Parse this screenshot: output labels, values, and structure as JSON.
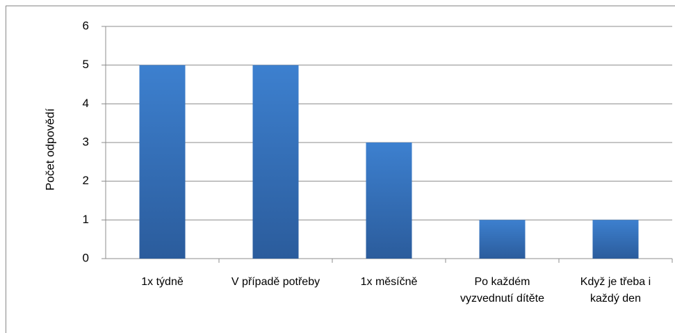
{
  "chart_data": {
    "type": "bar",
    "y_label": "Počet odpovědí",
    "categories": [
      "1x týdně",
      "V případě potřeby",
      "1x měsíčně",
      "Po každém vyzvednutí dítěte",
      "Když je třeba i každý den"
    ],
    "values": [
      5,
      5,
      3,
      1,
      1
    ],
    "color": "#3a78c4",
    "ylim": [
      0,
      6
    ],
    "yticks": [
      0,
      1,
      2,
      3,
      4,
      5,
      6
    ],
    "grid": true
  }
}
